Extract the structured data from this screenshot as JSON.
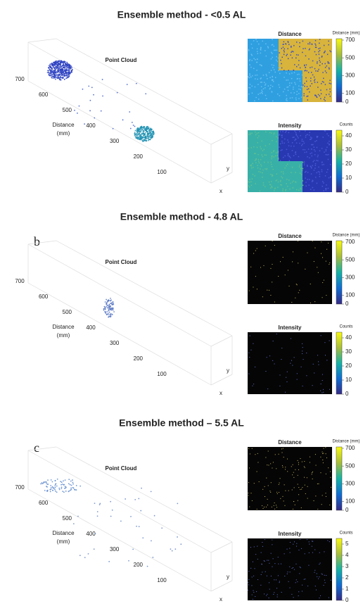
{
  "panels": [
    {
      "title": "Ensemble method - <0.5 AL",
      "point_cloud": {
        "title": "Point Cloud",
        "axis_label": [
          "Distance",
          "(mm)"
        ],
        "ticks": [
          700,
          600,
          500,
          400,
          300,
          200,
          100
        ],
        "y_label": "y",
        "x_label": "x"
      },
      "distance": {
        "title": "Distance",
        "unit": "Distance (mm)",
        "ticks": [
          700,
          500,
          300,
          100,
          0
        ]
      },
      "intensity": {
        "title": "Intensity",
        "unit": "Counts",
        "ticks": [
          40,
          30,
          20,
          10,
          0
        ]
      }
    },
    {
      "title": "Ensemble method - 4.8 AL",
      "letter": "b",
      "point_cloud": {
        "title": "Point Cloud",
        "axis_label": [
          "Distance",
          "(mm)"
        ],
        "ticks": [
          700,
          600,
          500,
          400,
          300,
          200,
          100
        ],
        "y_label": "y",
        "x_label": "x"
      },
      "distance": {
        "title": "Distance",
        "unit": "Distance (mm)",
        "ticks": [
          700,
          500,
          300,
          100,
          0
        ]
      },
      "intensity": {
        "title": "Intensity",
        "unit": "Counts",
        "ticks": [
          40,
          30,
          20,
          10,
          0
        ]
      }
    },
    {
      "title": "Ensemble method – 5.5 AL",
      "letter": "c",
      "point_cloud": {
        "title": "Point Cloud",
        "axis_label": [
          "Distance",
          "(mm)"
        ],
        "ticks": [
          700,
          600,
          500,
          400,
          300,
          200,
          100
        ],
        "y_label": "y",
        "x_label": "x"
      },
      "distance": {
        "title": "Distance",
        "unit": "Distance (mm)",
        "ticks": [
          700,
          500,
          300,
          100,
          0
        ]
      },
      "intensity": {
        "title": "Intensity",
        "unit": "Counts",
        "ticks": [
          5,
          4,
          3,
          2,
          1,
          0
        ]
      }
    }
  ]
}
